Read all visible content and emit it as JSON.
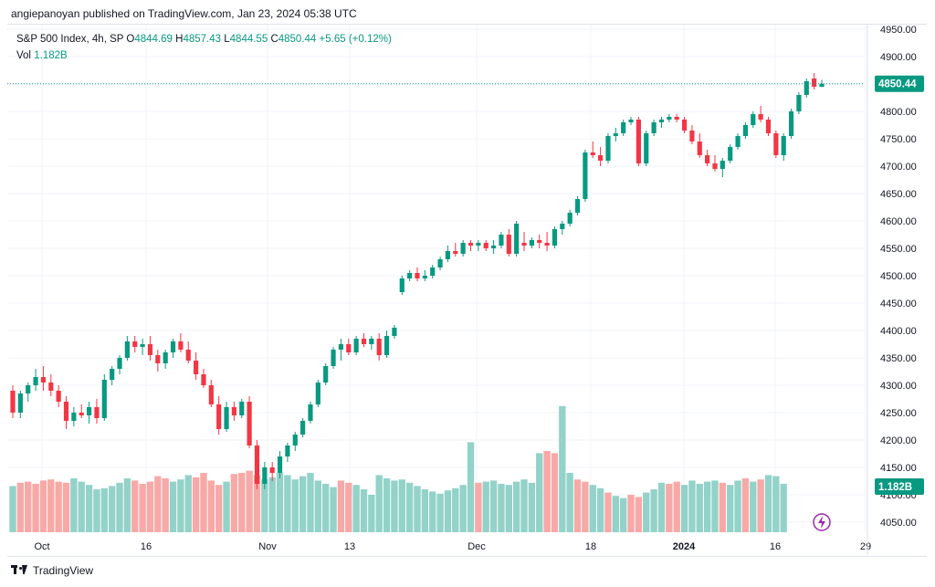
{
  "header": {
    "text": "angiepanoyan published on TradingView.com, Jan 23, 2024 05:38 UTC"
  },
  "legend": {
    "symbol": "S&P 500 Index, 4h, SP",
    "open_label": "O",
    "open": "4844.69",
    "high_label": "H",
    "high": "4857.43",
    "low_label": "L",
    "low": "4844.55",
    "close_label": "C",
    "close": "4850.44",
    "change": "+5.65 (+0.12%)",
    "vol_label": "Vol",
    "vol": "1.182B"
  },
  "price_badge": "4850.44",
  "volume_badge": "1.182B",
  "footer": {
    "brand": "TradingView"
  },
  "colors": {
    "up": "#089981",
    "down": "#f23645",
    "up_vol": "#93d2c9",
    "down_vol": "#f7a9a7",
    "badge": "#089981",
    "grid": "#f0f3fa",
    "text": "#131722"
  },
  "chart_data": {
    "type": "candlestick",
    "y_axis_ticks": [
      "4950.00",
      "4900.00",
      "4850.00",
      "4800.00",
      "4750.00",
      "4700.00",
      "4650.00",
      "4600.00",
      "4550.00",
      "4500.00",
      "4450.00",
      "4400.00",
      "4350.00",
      "4300.00",
      "4250.00",
      "4200.00",
      "4150.00",
      "4100.00",
      "4050.00"
    ],
    "ylim": [
      4030,
      4965
    ],
    "x_axis_labels": [
      "Oct",
      "16",
      "Nov",
      "13",
      "Dec",
      "18",
      "2024",
      "16",
      "29"
    ],
    "last_price": 4850.44,
    "candles": [
      [
        4290,
        4300,
        4240,
        4250
      ],
      [
        4250,
        4290,
        4240,
        4285
      ],
      [
        4285,
        4305,
        4270,
        4300
      ],
      [
        4300,
        4330,
        4290,
        4315
      ],
      [
        4315,
        4335,
        4290,
        4305
      ],
      [
        4305,
        4320,
        4280,
        4290
      ],
      [
        4290,
        4300,
        4260,
        4270
      ],
      [
        4270,
        4280,
        4220,
        4235
      ],
      [
        4235,
        4260,
        4225,
        4250
      ],
      [
        4250,
        4265,
        4240,
        4245
      ],
      [
        4245,
        4270,
        4230,
        4260
      ],
      [
        4260,
        4275,
        4230,
        4240
      ],
      [
        4240,
        4320,
        4235,
        4310
      ],
      [
        4310,
        4335,
        4300,
        4330
      ],
      [
        4330,
        4355,
        4320,
        4350
      ],
      [
        4350,
        4390,
        4345,
        4380
      ],
      [
        4380,
        4390,
        4360,
        4370
      ],
      [
        4370,
        4385,
        4355,
        4375
      ],
      [
        4375,
        4390,
        4345,
        4355
      ],
      [
        4355,
        4365,
        4325,
        4340
      ],
      [
        4340,
        4365,
        4330,
        4360
      ],
      [
        4360,
        4385,
        4350,
        4380
      ],
      [
        4380,
        4395,
        4360,
        4365
      ],
      [
        4365,
        4380,
        4340,
        4345
      ],
      [
        4345,
        4360,
        4310,
        4320
      ],
      [
        4320,
        4330,
        4295,
        4300
      ],
      [
        4300,
        4310,
        4260,
        4265
      ],
      [
        4265,
        4280,
        4210,
        4220
      ],
      [
        4220,
        4270,
        4215,
        4260
      ],
      [
        4260,
        4270,
        4235,
        4245
      ],
      [
        4245,
        4275,
        4240,
        4270
      ],
      [
        4270,
        4280,
        4185,
        4190
      ],
      [
        4190,
        4200,
        4110,
        4120
      ],
      [
        4120,
        4160,
        4110,
        4150
      ],
      [
        4150,
        4160,
        4125,
        4140
      ],
      [
        4140,
        4180,
        4130,
        4170
      ],
      [
        4170,
        4195,
        4160,
        4190
      ],
      [
        4190,
        4215,
        4180,
        4210
      ],
      [
        4210,
        4240,
        4205,
        4235
      ],
      [
        4235,
        4270,
        4230,
        4265
      ],
      [
        4265,
        4310,
        4260,
        4305
      ],
      [
        4305,
        4340,
        4300,
        4335
      ],
      [
        4335,
        4370,
        4330,
        4365
      ],
      [
        4365,
        4385,
        4345,
        4375
      ],
      [
        4375,
        4385,
        4355,
        4360
      ],
      [
        4360,
        4390,
        4355,
        4385
      ],
      [
        4385,
        4395,
        4370,
        4375
      ],
      [
        4375,
        4390,
        4365,
        4385
      ],
      [
        4385,
        4395,
        4345,
        4355
      ],
      [
        4355,
        4400,
        4350,
        4390
      ],
      [
        4390,
        4410,
        4385,
        4405
      ],
      [
        4470,
        4500,
        4465,
        4495
      ],
      [
        4495,
        4510,
        4490,
        4505
      ],
      [
        4505,
        4515,
        4490,
        4495
      ],
      [
        4495,
        4510,
        4490,
        4500
      ],
      [
        4500,
        4520,
        4495,
        4515
      ],
      [
        4515,
        4535,
        4510,
        4530
      ],
      [
        4530,
        4555,
        4525,
        4545
      ],
      [
        4545,
        4560,
        4535,
        4540
      ],
      [
        4540,
        4565,
        4535,
        4560
      ],
      [
        4560,
        4565,
        4545,
        4555
      ],
      [
        4555,
        4565,
        4545,
        4560
      ],
      [
        4560,
        4565,
        4545,
        4550
      ],
      [
        4550,
        4565,
        4540,
        4555
      ],
      [
        4555,
        4580,
        4550,
        4575
      ],
      [
        4575,
        4585,
        4535,
        4540
      ],
      [
        4540,
        4600,
        4535,
        4595
      ],
      [
        4560,
        4580,
        4545,
        4555
      ],
      [
        4555,
        4570,
        4550,
        4565
      ],
      [
        4565,
        4575,
        4550,
        4560
      ],
      [
        4560,
        4580,
        4545,
        4555
      ],
      [
        4555,
        4590,
        4550,
        4585
      ],
      [
        4585,
        4600,
        4575,
        4595
      ],
      [
        4595,
        4620,
        4590,
        4615
      ],
      [
        4615,
        4645,
        4610,
        4640
      ],
      [
        4640,
        4730,
        4635,
        4725
      ],
      [
        4725,
        4745,
        4715,
        4720
      ],
      [
        4720,
        4735,
        4700,
        4710
      ],
      [
        4710,
        4760,
        4705,
        4755
      ],
      [
        4755,
        4770,
        4745,
        4760
      ],
      [
        4760,
        4785,
        4755,
        4780
      ],
      [
        4780,
        4790,
        4775,
        4785
      ],
      [
        4785,
        4790,
        4700,
        4705
      ],
      [
        4705,
        4765,
        4700,
        4760
      ],
      [
        4760,
        4785,
        4755,
        4780
      ],
      [
        4780,
        4790,
        4770,
        4785
      ],
      [
        4785,
        4795,
        4780,
        4790
      ],
      [
        4790,
        4795,
        4780,
        4785
      ],
      [
        4785,
        4790,
        4760,
        4765
      ],
      [
        4765,
        4775,
        4740,
        4745
      ],
      [
        4745,
        4760,
        4715,
        4720
      ],
      [
        4720,
        4730,
        4700,
        4705
      ],
      [
        4705,
        4720,
        4690,
        4695
      ],
      [
        4695,
        4715,
        4680,
        4710
      ],
      [
        4710,
        4740,
        4705,
        4735
      ],
      [
        4735,
        4760,
        4730,
        4755
      ],
      [
        4755,
        4780,
        4750,
        4775
      ],
      [
        4775,
        4800,
        4770,
        4795
      ],
      [
        4795,
        4810,
        4780,
        4785
      ],
      [
        4785,
        4790,
        4755,
        4760
      ],
      [
        4760,
        4765,
        4715,
        4720
      ],
      [
        4720,
        4760,
        4710,
        4755
      ],
      [
        4755,
        4805,
        4750,
        4800
      ],
      [
        4800,
        4835,
        4795,
        4830
      ],
      [
        4830,
        4860,
        4825,
        4855
      ],
      [
        4860,
        4870,
        4840,
        4845
      ],
      [
        4844.69,
        4857.43,
        4844.55,
        4850.44
      ]
    ],
    "volume": [
      [
        4116,
        "up"
      ],
      [
        4122,
        "down"
      ],
      [
        4124,
        "down"
      ],
      [
        4120,
        "down"
      ],
      [
        4126,
        "down"
      ],
      [
        4128,
        "down"
      ],
      [
        4124,
        "down"
      ],
      [
        4122,
        "down"
      ],
      [
        4130,
        "up"
      ],
      [
        4124,
        "up"
      ],
      [
        4118,
        "up"
      ],
      [
        4110,
        "up"
      ],
      [
        4112,
        "up"
      ],
      [
        4116,
        "up"
      ],
      [
        4122,
        "up"
      ],
      [
        4130,
        "up"
      ],
      [
        4126,
        "down"
      ],
      [
        4120,
        "down"
      ],
      [
        4124,
        "down"
      ],
      [
        4134,
        "down"
      ],
      [
        4130,
        "down"
      ],
      [
        4124,
        "up"
      ],
      [
        4128,
        "up"
      ],
      [
        4136,
        "up"
      ],
      [
        4132,
        "down"
      ],
      [
        4140,
        "down"
      ],
      [
        4126,
        "down"
      ],
      [
        4118,
        "down"
      ],
      [
        4124,
        "up"
      ],
      [
        4138,
        "down"
      ],
      [
        4140,
        "down"
      ],
      [
        4144,
        "down"
      ],
      [
        4136,
        "down"
      ],
      [
        4128,
        "up"
      ],
      [
        4132,
        "up"
      ],
      [
        4140,
        "up"
      ],
      [
        4136,
        "up"
      ],
      [
        4128,
        "up"
      ],
      [
        4134,
        "up"
      ],
      [
        4140,
        "up"
      ],
      [
        4126,
        "up"
      ],
      [
        4120,
        "up"
      ],
      [
        4114,
        "up"
      ],
      [
        4126,
        "down"
      ],
      [
        4122,
        "down"
      ],
      [
        4118,
        "up"
      ],
      [
        4110,
        "up"
      ],
      [
        4100,
        "up"
      ],
      [
        4136,
        "up"
      ],
      [
        4130,
        "up"
      ],
      [
        4126,
        "up"
      ],
      [
        4128,
        "up"
      ],
      [
        4122,
        "up"
      ],
      [
        4116,
        "up"
      ],
      [
        4110,
        "up"
      ],
      [
        4106,
        "up"
      ],
      [
        4102,
        "up"
      ],
      [
        4108,
        "up"
      ],
      [
        4112,
        "up"
      ],
      [
        4118,
        "up"
      ],
      [
        4196,
        "up"
      ],
      [
        4122,
        "down"
      ],
      [
        4124,
        "up"
      ],
      [
        4126,
        "up"
      ],
      [
        4120,
        "up"
      ],
      [
        4118,
        "up"
      ],
      [
        4124,
        "up"
      ],
      [
        4128,
        "up"
      ],
      [
        4122,
        "up"
      ],
      [
        4176,
        "up"
      ],
      [
        4180,
        "down"
      ],
      [
        4176,
        "down"
      ],
      [
        4262,
        "up"
      ],
      [
        4140,
        "up"
      ],
      [
        4128,
        "down"
      ],
      [
        4124,
        "down"
      ],
      [
        4118,
        "up"
      ],
      [
        4112,
        "up"
      ],
      [
        4104,
        "down"
      ],
      [
        4098,
        "up"
      ],
      [
        4094,
        "up"
      ],
      [
        4100,
        "down"
      ],
      [
        4096,
        "down"
      ],
      [
        4104,
        "up"
      ],
      [
        4110,
        "up"
      ],
      [
        4122,
        "up"
      ],
      [
        4120,
        "down"
      ],
      [
        4124,
        "down"
      ],
      [
        4118,
        "up"
      ],
      [
        4126,
        "up"
      ],
      [
        4120,
        "up"
      ],
      [
        4124,
        "up"
      ],
      [
        4126,
        "up"
      ],
      [
        4122,
        "down"
      ],
      [
        4118,
        "up"
      ],
      [
        4126,
        "up"
      ],
      [
        4130,
        "down"
      ],
      [
        4124,
        "up"
      ],
      [
        4128,
        "down"
      ],
      [
        4136,
        "up"
      ],
      [
        4134,
        "up"
      ],
      [
        4120,
        "up"
      ]
    ]
  }
}
